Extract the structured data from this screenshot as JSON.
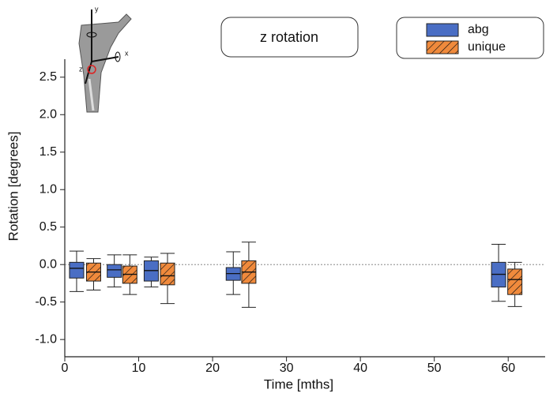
{
  "chart_data": {
    "type": "box",
    "title": "z rotation",
    "x_label": "Time [mths]",
    "y_label": "Rotation [degrees]",
    "inset_labels": [
      "y",
      "x",
      "z"
    ],
    "xlim": [
      0,
      65
    ],
    "ylim": [
      -1.23,
      2.74
    ],
    "xticks": [
      0,
      10,
      20,
      30,
      40,
      50,
      60
    ],
    "yticks": [
      {
        "value": -1,
        "label": "-1.0"
      },
      -0.5,
      {
        "value": 0,
        "label": "0.0"
      },
      0.5,
      {
        "value": 1,
        "label": "1.0"
      },
      1.5,
      {
        "value": 2,
        "label": "2.0"
      },
      2.5
    ],
    "reference_line": 0,
    "series": [
      {
        "name": "abg",
        "color": "#4a6ec4",
        "hatch": false,
        "x": [
          1.6,
          6.7,
          11.7,
          22.8,
          58.7
        ],
        "whisker_low": [
          -0.36,
          -0.3,
          -0.3,
          -0.4,
          -0.49
        ],
        "q1": [
          -0.18,
          -0.17,
          -0.22,
          -0.21,
          -0.3
        ],
        "median": [
          -0.05,
          -0.07,
          -0.08,
          -0.12,
          -0.13
        ],
        "q3": [
          0.03,
          0.0,
          0.05,
          -0.04,
          0.03
        ],
        "whisker_high": [
          0.18,
          0.13,
          0.1,
          0.17,
          0.27
        ]
      },
      {
        "name": "unique",
        "color": "#f08a3c",
        "hatch": true,
        "x": [
          3.9,
          8.8,
          13.9,
          24.9,
          60.9
        ],
        "whisker_low": [
          -0.34,
          -0.4,
          -0.52,
          -0.57,
          -0.56
        ],
        "q1": [
          -0.22,
          -0.25,
          -0.27,
          -0.25,
          -0.4
        ],
        "median": [
          -0.1,
          -0.13,
          -0.15,
          -0.1,
          -0.2
        ],
        "q3": [
          0.02,
          -0.02,
          0.02,
          0.05,
          -0.06
        ],
        "whisker_high": [
          0.08,
          0.13,
          0.15,
          0.3,
          0.03
        ]
      }
    ]
  }
}
